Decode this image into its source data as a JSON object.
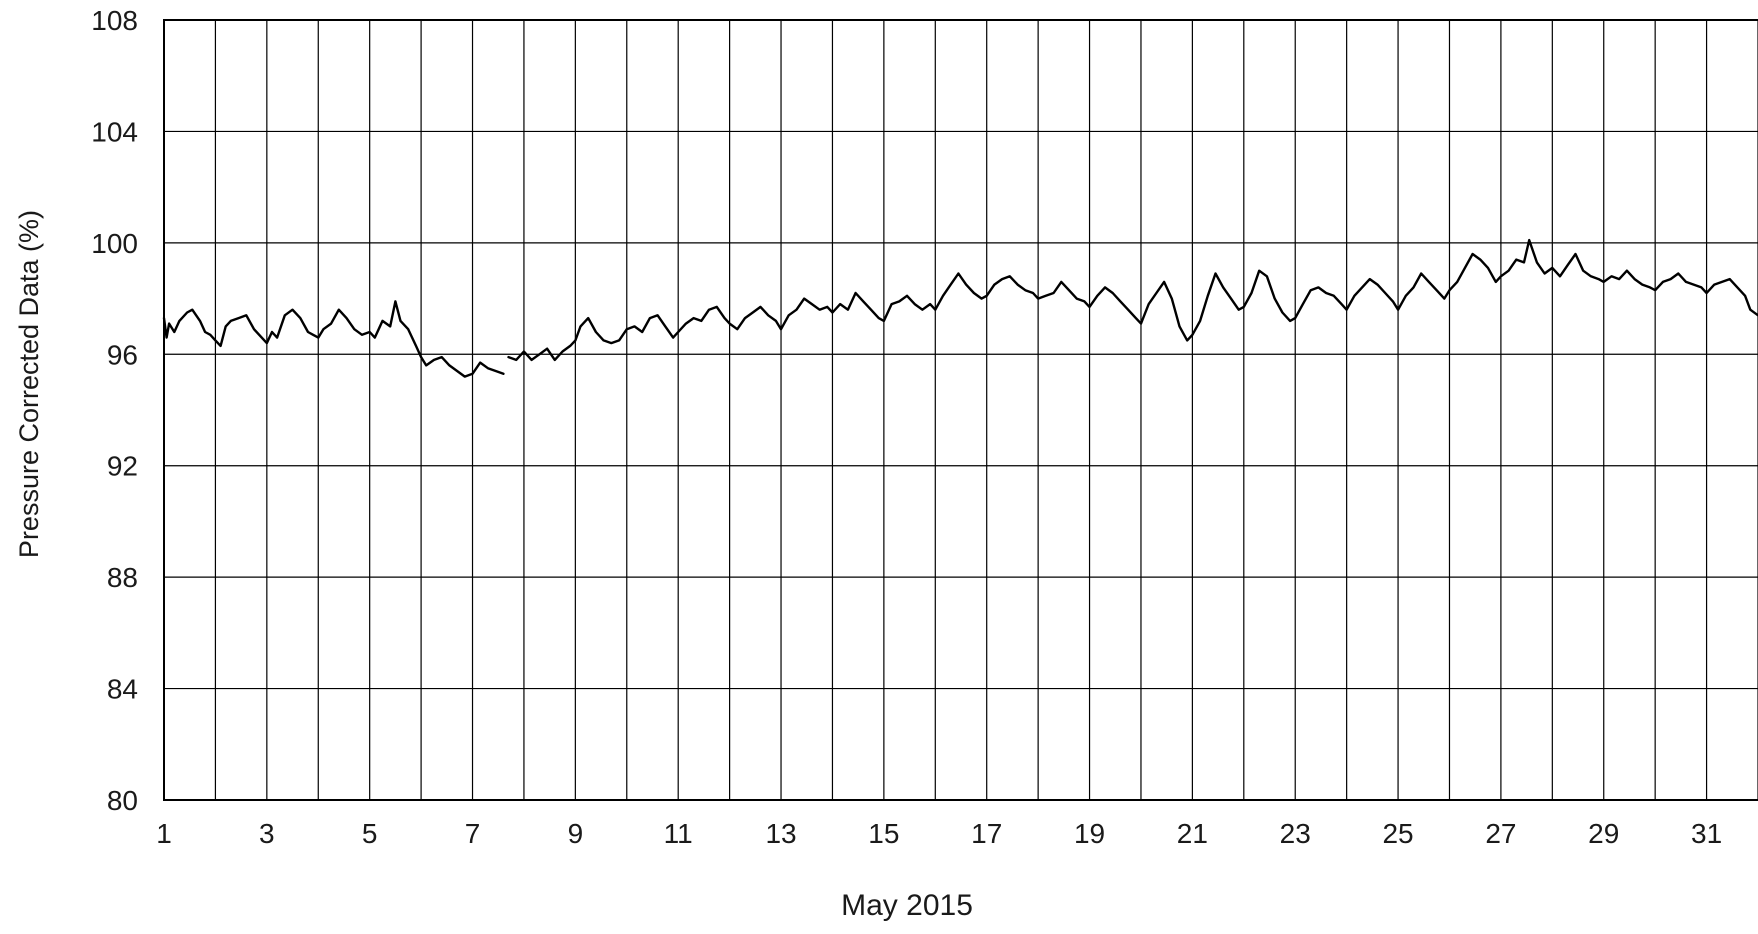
{
  "chart_data": {
    "type": "line",
    "title": "",
    "xlabel": "May 2015",
    "ylabel": "Pressure Corrected Data (%)",
    "xlim": [
      1,
      32
    ],
    "ylim": [
      80,
      108
    ],
    "x_ticks": [
      1,
      2,
      3,
      4,
      5,
      6,
      7,
      8,
      9,
      10,
      11,
      12,
      13,
      14,
      15,
      16,
      17,
      18,
      19,
      20,
      21,
      22,
      23,
      24,
      25,
      26,
      27,
      28,
      29,
      30,
      31,
      32
    ],
    "x_tick_labels": [
      "1",
      "3",
      "5",
      "7",
      "9",
      "11",
      "13",
      "15",
      "17",
      "19",
      "21",
      "23",
      "25",
      "27",
      "29",
      "31"
    ],
    "x_tick_label_values": [
      1,
      3,
      5,
      7,
      9,
      11,
      13,
      15,
      17,
      19,
      21,
      23,
      25,
      27,
      29,
      31
    ],
    "y_ticks": [
      80,
      84,
      88,
      92,
      96,
      100,
      104,
      108
    ],
    "y_tick_labels": [
      "80",
      "84",
      "88",
      "92",
      "96",
      "100",
      "104",
      "108"
    ],
    "grid": true,
    "legend": "none",
    "line_color": "#000000",
    "series": [
      {
        "segments": [
          [
            [
              1.0,
              97.3
            ],
            [
              1.05,
              96.6
            ],
            [
              1.1,
              97.1
            ],
            [
              1.2,
              96.8
            ],
            [
              1.3,
              97.2
            ],
            [
              1.45,
              97.5
            ],
            [
              1.55,
              97.6
            ],
            [
              1.7,
              97.2
            ],
            [
              1.8,
              96.8
            ],
            [
              1.9,
              96.7
            ],
            [
              2.0,
              96.5
            ],
            [
              2.1,
              96.3
            ],
            [
              2.2,
              97.0
            ],
            [
              2.3,
              97.2
            ],
            [
              2.45,
              97.3
            ],
            [
              2.6,
              97.4
            ],
            [
              2.75,
              96.9
            ],
            [
              2.9,
              96.6
            ],
            [
              3.0,
              96.4
            ],
            [
              3.1,
              96.8
            ],
            [
              3.2,
              96.6
            ],
            [
              3.35,
              97.4
            ],
            [
              3.5,
              97.6
            ],
            [
              3.65,
              97.3
            ],
            [
              3.8,
              96.8
            ],
            [
              3.9,
              96.7
            ],
            [
              4.0,
              96.6
            ],
            [
              4.1,
              96.9
            ],
            [
              4.25,
              97.1
            ],
            [
              4.4,
              97.6
            ],
            [
              4.55,
              97.3
            ],
            [
              4.7,
              96.9
            ],
            [
              4.85,
              96.7
            ],
            [
              5.0,
              96.8
            ],
            [
              5.1,
              96.6
            ],
            [
              5.25,
              97.2
            ],
            [
              5.4,
              97.0
            ],
            [
              5.5,
              97.9
            ],
            [
              5.6,
              97.2
            ],
            [
              5.75,
              96.9
            ],
            [
              5.9,
              96.3
            ],
            [
              6.0,
              95.9
            ],
            [
              6.1,
              95.6
            ],
            [
              6.25,
              95.8
            ],
            [
              6.4,
              95.9
            ],
            [
              6.55,
              95.6
            ],
            [
              6.7,
              95.4
            ],
            [
              6.85,
              95.2
            ],
            [
              7.0,
              95.3
            ],
            [
              7.15,
              95.7
            ],
            [
              7.3,
              95.5
            ],
            [
              7.45,
              95.4
            ],
            [
              7.6,
              95.3
            ]
          ],
          [
            [
              7.7,
              95.9
            ],
            [
              7.85,
              95.8
            ],
            [
              8.0,
              96.1
            ],
            [
              8.15,
              95.8
            ],
            [
              8.3,
              96.0
            ],
            [
              8.45,
              96.2
            ],
            [
              8.6,
              95.8
            ],
            [
              8.75,
              96.1
            ],
            [
              8.9,
              96.3
            ],
            [
              9.0,
              96.5
            ],
            [
              9.1,
              97.0
            ],
            [
              9.25,
              97.3
            ],
            [
              9.4,
              96.8
            ],
            [
              9.55,
              96.5
            ],
            [
              9.7,
              96.4
            ],
            [
              9.85,
              96.5
            ],
            [
              10.0,
              96.9
            ],
            [
              10.15,
              97.0
            ],
            [
              10.3,
              96.8
            ],
            [
              10.45,
              97.3
            ],
            [
              10.6,
              97.4
            ],
            [
              10.75,
              97.0
            ],
            [
              10.9,
              96.6
            ],
            [
              11.0,
              96.8
            ],
            [
              11.15,
              97.1
            ],
            [
              11.3,
              97.3
            ],
            [
              11.45,
              97.2
            ],
            [
              11.6,
              97.6
            ],
            [
              11.75,
              97.7
            ],
            [
              11.9,
              97.3
            ],
            [
              12.0,
              97.1
            ],
            [
              12.15,
              96.9
            ],
            [
              12.3,
              97.3
            ],
            [
              12.45,
              97.5
            ],
            [
              12.6,
              97.7
            ],
            [
              12.75,
              97.4
            ],
            [
              12.9,
              97.2
            ],
            [
              13.0,
              96.9
            ],
            [
              13.15,
              97.4
            ],
            [
              13.3,
              97.6
            ],
            [
              13.45,
              98.0
            ],
            [
              13.6,
              97.8
            ],
            [
              13.75,
              97.6
            ],
            [
              13.9,
              97.7
            ],
            [
              14.0,
              97.5
            ],
            [
              14.15,
              97.8
            ],
            [
              14.3,
              97.6
            ],
            [
              14.45,
              98.2
            ],
            [
              14.6,
              97.9
            ],
            [
              14.75,
              97.6
            ],
            [
              14.9,
              97.3
            ],
            [
              15.0,
              97.2
            ],
            [
              15.15,
              97.8
            ],
            [
              15.3,
              97.9
            ],
            [
              15.45,
              98.1
            ],
            [
              15.6,
              97.8
            ],
            [
              15.75,
              97.6
            ],
            [
              15.9,
              97.8
            ],
            [
              16.0,
              97.6
            ],
            [
              16.15,
              98.1
            ],
            [
              16.3,
              98.5
            ],
            [
              16.45,
              98.9
            ],
            [
              16.6,
              98.5
            ],
            [
              16.75,
              98.2
            ],
            [
              16.9,
              98.0
            ],
            [
              17.0,
              98.1
            ],
            [
              17.15,
              98.5
            ],
            [
              17.3,
              98.7
            ],
            [
              17.45,
              98.8
            ],
            [
              17.6,
              98.5
            ],
            [
              17.75,
              98.3
            ],
            [
              17.9,
              98.2
            ],
            [
              18.0,
              98.0
            ],
            [
              18.15,
              98.1
            ],
            [
              18.3,
              98.2
            ],
            [
              18.45,
              98.6
            ],
            [
              18.6,
              98.3
            ],
            [
              18.75,
              98.0
            ],
            [
              18.9,
              97.9
            ],
            [
              19.0,
              97.7
            ],
            [
              19.15,
              98.1
            ],
            [
              19.3,
              98.4
            ],
            [
              19.45,
              98.2
            ],
            [
              19.6,
              97.9
            ],
            [
              19.75,
              97.6
            ],
            [
              19.9,
              97.3
            ],
            [
              20.0,
              97.1
            ],
            [
              20.15,
              97.8
            ],
            [
              20.3,
              98.2
            ],
            [
              20.45,
              98.6
            ],
            [
              20.6,
              98.0
            ],
            [
              20.75,
              97.0
            ],
            [
              20.9,
              96.5
            ],
            [
              21.0,
              96.7
            ],
            [
              21.15,
              97.2
            ],
            [
              21.3,
              98.1
            ],
            [
              21.45,
              98.9
            ],
            [
              21.6,
              98.4
            ],
            [
              21.75,
              98.0
            ],
            [
              21.9,
              97.6
            ],
            [
              22.0,
              97.7
            ],
            [
              22.15,
              98.2
            ],
            [
              22.3,
              99.0
            ],
            [
              22.45,
              98.8
            ],
            [
              22.6,
              98.0
            ],
            [
              22.75,
              97.5
            ],
            [
              22.9,
              97.2
            ],
            [
              23.0,
              97.3
            ],
            [
              23.15,
              97.8
            ],
            [
              23.3,
              98.3
            ],
            [
              23.45,
              98.4
            ],
            [
              23.6,
              98.2
            ],
            [
              23.75,
              98.1
            ],
            [
              23.9,
              97.8
            ],
            [
              24.0,
              97.6
            ],
            [
              24.15,
              98.1
            ],
            [
              24.3,
              98.4
            ],
            [
              24.45,
              98.7
            ],
            [
              24.6,
              98.5
            ],
            [
              24.75,
              98.2
            ],
            [
              24.9,
              97.9
            ],
            [
              25.0,
              97.6
            ],
            [
              25.15,
              98.1
            ],
            [
              25.3,
              98.4
            ],
            [
              25.45,
              98.9
            ],
            [
              25.6,
              98.6
            ],
            [
              25.75,
              98.3
            ],
            [
              25.9,
              98.0
            ],
            [
              26.0,
              98.3
            ],
            [
              26.15,
              98.6
            ],
            [
              26.3,
              99.1
            ],
            [
              26.45,
              99.6
            ],
            [
              26.6,
              99.4
            ],
            [
              26.75,
              99.1
            ],
            [
              26.9,
              98.6
            ],
            [
              27.0,
              98.8
            ],
            [
              27.15,
              99.0
            ],
            [
              27.3,
              99.4
            ],
            [
              27.45,
              99.3
            ],
            [
              27.55,
              100.1
            ],
            [
              27.7,
              99.3
            ],
            [
              27.85,
              98.9
            ],
            [
              28.0,
              99.1
            ],
            [
              28.15,
              98.8
            ],
            [
              28.3,
              99.2
            ],
            [
              28.45,
              99.6
            ],
            [
              28.6,
              99.0
            ],
            [
              28.75,
              98.8
            ],
            [
              28.9,
              98.7
            ],
            [
              29.0,
              98.6
            ],
            [
              29.15,
              98.8
            ],
            [
              29.3,
              98.7
            ],
            [
              29.45,
              99.0
            ],
            [
              29.6,
              98.7
            ],
            [
              29.75,
              98.5
            ],
            [
              29.9,
              98.4
            ],
            [
              30.0,
              98.3
            ],
            [
              30.15,
              98.6
            ],
            [
              30.3,
              98.7
            ],
            [
              30.45,
              98.9
            ],
            [
              30.6,
              98.6
            ],
            [
              30.75,
              98.5
            ],
            [
              30.9,
              98.4
            ],
            [
              31.0,
              98.2
            ],
            [
              31.15,
              98.5
            ],
            [
              31.3,
              98.6
            ],
            [
              31.45,
              98.7
            ],
            [
              31.6,
              98.4
            ],
            [
              31.75,
              98.1
            ],
            [
              31.85,
              97.6
            ],
            [
              32.0,
              97.4
            ]
          ]
        ]
      }
    ]
  }
}
